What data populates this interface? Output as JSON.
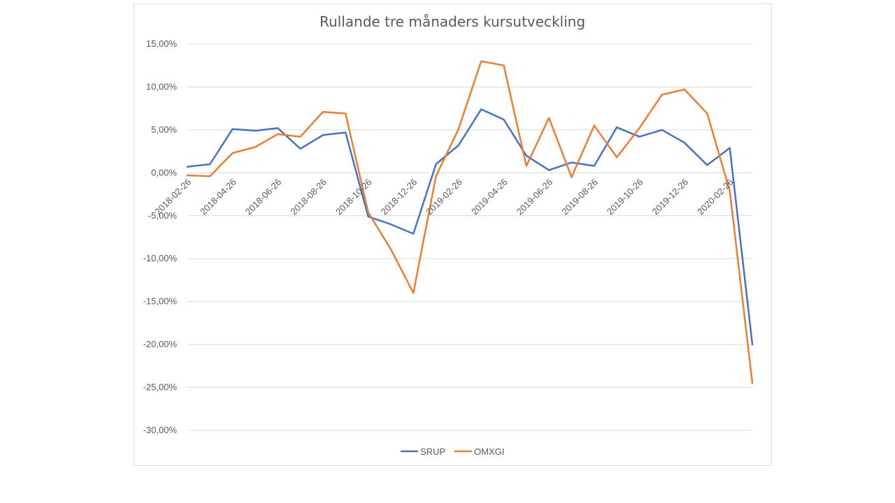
{
  "chart_data": {
    "type": "line",
    "title": "Rullande tre månaders kursutveckling",
    "xlabel": "",
    "ylabel": "",
    "ylim": [
      -30,
      15
    ],
    "y_ticks": [
      15,
      10,
      5,
      0,
      -5,
      -10,
      -15,
      -20,
      -25,
      -30
    ],
    "y_tick_labels": [
      "15,00%",
      "10,00%",
      "5,00%",
      "0,00%",
      "-5,00%",
      "-10,00%",
      "-15,00%",
      "-20,00%",
      "-25,00%",
      "-30,00%"
    ],
    "x_tick_labels": [
      "2018-02-26",
      "2018-04-26",
      "2018-06-26",
      "2018-08-26",
      "2018-10-26",
      "2018-12-26",
      "2019-02-26",
      "2019-04-26",
      "2019-06-26",
      "2019-08-26",
      "2019-10-26",
      "2019-12-26",
      "2020-02-26"
    ],
    "grid": true,
    "legend_position": "bottom",
    "series": [
      {
        "name": "SRUP",
        "color": "#4472c4",
        "values": [
          0.7,
          1.0,
          5.1,
          4.9,
          5.2,
          2.8,
          4.4,
          4.7,
          -5.1,
          -6.0,
          -7.1,
          1.0,
          3.2,
          7.4,
          6.2,
          2.0,
          0.3,
          1.2,
          0.8,
          5.3,
          4.2,
          5.0,
          3.5,
          0.9,
          2.9,
          -20.0
        ]
      },
      {
        "name": "OMXGI",
        "color": "#ed7d31",
        "values": [
          -0.3,
          -0.4,
          2.3,
          3.0,
          4.5,
          4.2,
          7.1,
          6.9,
          -4.6,
          -8.9,
          -14.0,
          -0.4,
          5.1,
          13.0,
          12.5,
          0.8,
          6.4,
          -0.5,
          5.5,
          1.8,
          5.2,
          9.1,
          9.7,
          6.9,
          -2.1,
          -24.5
        ]
      }
    ]
  }
}
